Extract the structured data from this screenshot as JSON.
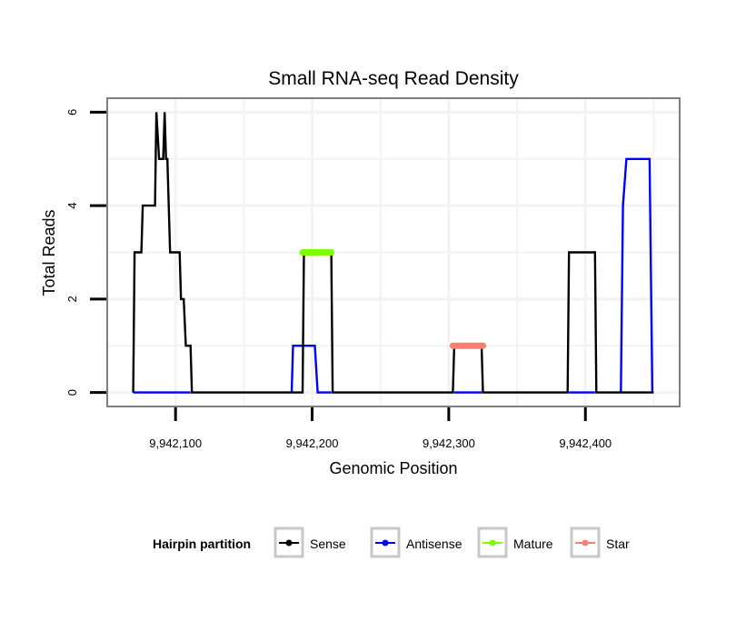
{
  "chart_data": {
    "type": "line",
    "title": "Small RNA-seq Read Density",
    "xlabel": "Genomic Position",
    "ylabel": "Total Reads",
    "xlim": [
      9942050,
      9942469
    ],
    "ylim": [
      -0.3,
      6.3
    ],
    "x_ticks": [
      9942100,
      9942200,
      9942300,
      9942400
    ],
    "x_tick_labels": [
      "9,942,100",
      "9,942,200",
      "9,942,300",
      "9,942,400"
    ],
    "y_ticks": [
      0,
      2,
      4,
      6
    ],
    "y_tick_labels": [
      "0",
      "2",
      "4",
      "6"
    ],
    "grid": true,
    "legend": {
      "title": "Hairpin partition",
      "placement": "bottom",
      "entries": [
        "Sense",
        "Antisense",
        "Mature",
        "Star"
      ]
    },
    "series": [
      {
        "name": "Sense",
        "color": "#000000",
        "x": [
          9942069,
          9942070,
          9942075,
          9942076,
          9942085,
          9942086,
          9942088,
          9942091,
          9942092,
          9942093,
          9942094,
          9942096,
          9942103,
          9942104,
          9942106,
          9942107.5,
          9942111,
          9942112,
          9942193,
          9942194,
          9942214,
          9942215,
          9942303,
          9942304,
          9942324,
          9942325,
          9942387,
          9942388,
          9942407,
          9942408,
          9942450
        ],
        "y": [
          0,
          3,
          3,
          4,
          4,
          6,
          5,
          5,
          6,
          5,
          5,
          3,
          3,
          2,
          2,
          1,
          1,
          0,
          0,
          3,
          3,
          0,
          0,
          1,
          1,
          0,
          0,
          3,
          3,
          0,
          0
        ]
      },
      {
        "name": "Antisense",
        "color": "#0000ff",
        "x": [
          9942069,
          9942111,
          null,
          9942185,
          9942186,
          9942202,
          9942204,
          9942214,
          null,
          9942304,
          9942324,
          null,
          9942388,
          9942407,
          null,
          9942426,
          9942427.5,
          9942430,
          9942447,
          9942449
        ],
        "y": [
          0,
          0,
          null,
          0,
          1,
          1,
          0,
          0,
          null,
          0,
          0,
          null,
          0,
          0,
          null,
          0,
          4,
          5,
          5,
          0
        ]
      },
      {
        "name": "Mature",
        "color": "#7fff00",
        "x": [
          9942193,
          9942214
        ],
        "y": [
          3,
          3
        ]
      },
      {
        "name": "Star",
        "color": "#fa8072",
        "x": [
          9942303,
          9942325
        ],
        "y": [
          1,
          1
        ]
      }
    ]
  }
}
